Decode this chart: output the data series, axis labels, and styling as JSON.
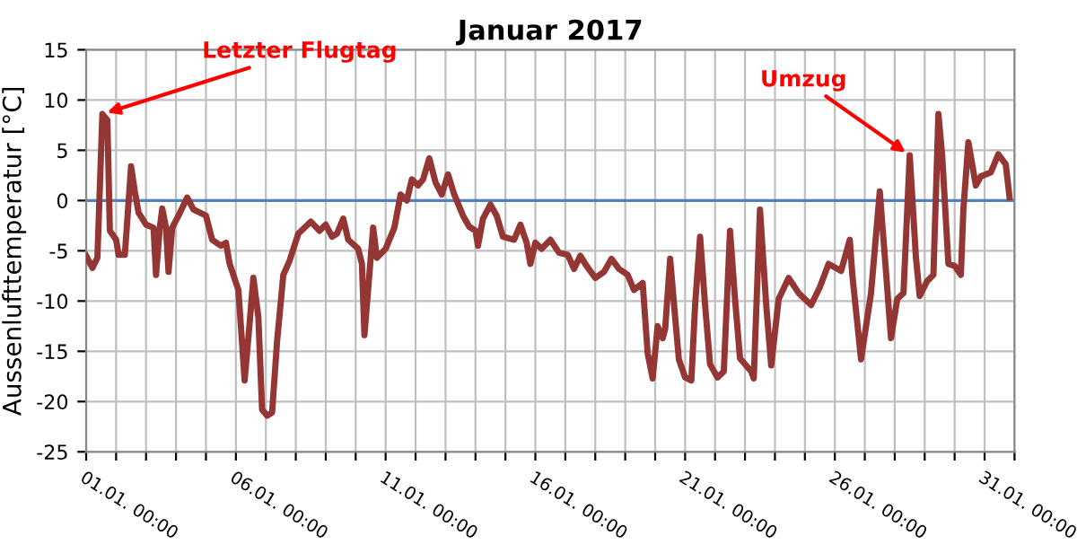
{
  "chart_data": {
    "type": "line",
    "title": "Januar 2017",
    "ylabel": "Aussenlufttemperatur [°C]",
    "x": [
      "2017-01-01T00:00",
      "2017-01-01T05:00",
      "2017-01-01T09:00",
      "2017-01-01T13:00",
      "2017-01-01T17:00",
      "2017-01-01T19:00",
      "2017-01-02T00:00",
      "2017-01-02T02:00",
      "2017-01-02T07:00",
      "2017-01-02T12:00",
      "2017-01-02T15:00",
      "2017-01-02T18:00",
      "2017-01-03T00:00",
      "2017-01-03T06:00",
      "2017-01-03T08:00",
      "2017-01-03T11:00",
      "2017-01-03T13:00",
      "2017-01-03T16:00",
      "2017-01-03T18:00",
      "2017-01-03T21:00",
      "2017-01-04T02:00",
      "2017-01-04T09:00",
      "2017-01-04T14:00",
      "2017-01-05T00:00",
      "2017-01-05T05:00",
      "2017-01-05T12:00",
      "2017-01-05T16:00",
      "2017-01-05T19:00",
      "2017-01-06T02:00",
      "2017-01-06T07:00",
      "2017-01-06T11:00",
      "2017-01-06T14:00",
      "2017-01-06T18:00",
      "2017-01-06T21:00",
      "2017-01-07T01:00",
      "2017-01-07T05:00",
      "2017-01-07T09:00",
      "2017-01-07T14:00",
      "2017-01-07T19:00",
      "2017-01-08T02:00",
      "2017-01-08T12:00",
      "2017-01-08T19:00",
      "2017-01-09T00:00",
      "2017-01-09T05:00",
      "2017-01-09T09:00",
      "2017-01-09T14:00",
      "2017-01-09T18:00",
      "2017-01-10T02:00",
      "2017-01-10T05:00",
      "2017-01-10T07:00",
      "2017-01-10T14:00",
      "2017-01-10T17:00",
      "2017-01-11T00:00",
      "2017-01-11T07:00",
      "2017-01-11T12:00",
      "2017-01-11T17:00",
      "2017-01-11T21:00",
      "2017-01-12T02:00",
      "2017-01-12T06:00",
      "2017-01-12T11:00",
      "2017-01-12T16:00",
      "2017-01-12T21:00",
      "2017-01-13T02:00",
      "2017-01-13T07:00",
      "2017-01-13T14:00",
      "2017-01-13T19:00",
      "2017-01-14T00:00",
      "2017-01-14T02:00",
      "2017-01-14T06:00",
      "2017-01-14T12:00",
      "2017-01-14T17:00",
      "2017-01-14T22:00",
      "2017-01-15T07:00",
      "2017-01-15T12:00",
      "2017-01-15T17:00",
      "2017-01-15T20:00",
      "2017-01-16T00:00",
      "2017-01-16T05:00",
      "2017-01-16T12:00",
      "2017-01-16T19:00",
      "2017-01-17T02:00",
      "2017-01-17T07:00",
      "2017-01-17T12:00",
      "2017-01-17T17:00",
      "2017-01-18T00:00",
      "2017-01-18T07:00",
      "2017-01-18T13:00",
      "2017-01-18T19:00",
      "2017-01-19T02:00",
      "2017-01-19T07:00",
      "2017-01-19T14:00",
      "2017-01-19T18:00",
      "2017-01-19T22:00",
      "2017-01-20T02:00",
      "2017-01-20T06:00",
      "2017-01-20T08:00",
      "2017-01-20T12:00",
      "2017-01-20T16:00",
      "2017-01-20T19:00",
      "2017-01-21T00:00",
      "2017-01-21T05:00",
      "2017-01-21T08:00",
      "2017-01-21T12:00",
      "2017-01-21T16:00",
      "2017-01-21T20:00",
      "2017-01-22T02:00",
      "2017-01-22T07:00",
      "2017-01-22T12:00",
      "2017-01-22T16:00",
      "2017-01-22T20:00",
      "2017-01-23T05:00",
      "2017-01-23T07:00",
      "2017-01-23T12:00",
      "2017-01-23T17:00",
      "2017-01-23T21:00",
      "2017-01-24T03:00",
      "2017-01-24T11:00",
      "2017-01-24T19:00",
      "2017-01-25T05:00",
      "2017-01-25T12:00",
      "2017-01-25T19:00",
      "2017-01-26T05:00",
      "2017-01-26T12:00",
      "2017-01-26T14:00",
      "2017-01-26T21:00",
      "2017-01-27T05:00",
      "2017-01-27T12:00",
      "2017-01-27T17:00",
      "2017-01-27T21:00",
      "2017-01-28T02:00",
      "2017-01-28T07:00",
      "2017-01-28T12:00",
      "2017-01-28T17:00",
      "2017-01-28T20:00",
      "2017-01-29T02:00",
      "2017-01-29T07:00",
      "2017-01-29T11:00",
      "2017-01-29T14:00",
      "2017-01-29T19:00",
      "2017-01-30T00:00",
      "2017-01-30T05:00",
      "2017-01-30T07:00",
      "2017-01-30T11:00",
      "2017-01-30T17:00",
      "2017-01-30T21:00",
      "2017-01-31T05:00",
      "2017-01-31T11:00",
      "2017-01-31T17:00",
      "2017-01-31T20:00"
    ],
    "series": [
      {
        "color": "#943634",
        "values": [
          -5.5,
          -6.7,
          -5.7,
          8.6,
          8.0,
          -3.0,
          -3.9,
          -5.4,
          -5.4,
          3.4,
          0.9,
          -1.2,
          -2.4,
          -2.7,
          -7.4,
          -2.7,
          -0.8,
          -2.7,
          -7.1,
          -2.7,
          -1.5,
          0.3,
          -0.9,
          -1.5,
          -3.9,
          -4.5,
          -4.2,
          -6.3,
          -8.9,
          -17.9,
          -12.2,
          -7.7,
          -11.6,
          -20.8,
          -21.4,
          -21.1,
          -14.0,
          -7.4,
          -6.0,
          -3.3,
          -2.1,
          -3.0,
          -2.4,
          -3.6,
          -3.3,
          -1.8,
          -3.9,
          -4.8,
          -6.3,
          -13.4,
          -2.7,
          -5.7,
          -4.8,
          -2.7,
          0.6,
          0.0,
          2.1,
          1.5,
          2.1,
          4.2,
          1.8,
          0.6,
          2.6,
          0.6,
          -1.5,
          -2.6,
          -3.0,
          -4.5,
          -1.8,
          -0.4,
          -1.5,
          -3.6,
          -3.9,
          -2.4,
          -4.2,
          -6.3,
          -4.2,
          -4.8,
          -3.9,
          -5.2,
          -5.4,
          -6.8,
          -5.5,
          -6.5,
          -7.7,
          -7.1,
          -5.8,
          -6.8,
          -7.4,
          -8.9,
          -8.2,
          -15.2,
          -17.7,
          -12.5,
          -13.7,
          -12.8,
          -5.8,
          -11.6,
          -15.8,
          -17.6,
          -17.9,
          -10.4,
          -3.6,
          -10.4,
          -16.3,
          -17.6,
          -17.0,
          -3.0,
          -9.8,
          -15.7,
          -17.0,
          -17.7,
          -0.9,
          -10.4,
          -16.4,
          -9.8,
          -7.7,
          -9.2,
          -10.4,
          -8.6,
          -6.3,
          -7.0,
          -3.9,
          -7.4,
          -15.8,
          -9.2,
          0.9,
          -7.1,
          -13.7,
          -9.8,
          -9.2,
          4.5,
          -5.7,
          -9.5,
          -8.0,
          -7.4,
          8.6,
          4.5,
          -6.3,
          -6.5,
          -7.4,
          -0.9,
          5.8,
          1.5,
          2.4,
          2.8,
          4.6,
          3.6,
          0.3
        ]
      }
    ],
    "xlim": [
      "2017-01-01T00:00",
      "2017-02-01T00:00"
    ],
    "xticks": [
      {
        "value": "2017-01-01T00:00",
        "label": "01.01. 00:00"
      },
      {
        "value": "2017-01-02T00:00",
        "label": null
      },
      {
        "value": "2017-01-03T00:00",
        "label": null
      },
      {
        "value": "2017-01-04T00:00",
        "label": null
      },
      {
        "value": "2017-01-05T00:00",
        "label": null
      },
      {
        "value": "2017-01-06T00:00",
        "label": "06.01. 00:00"
      },
      {
        "value": "2017-01-07T00:00",
        "label": null
      },
      {
        "value": "2017-01-08T00:00",
        "label": null
      },
      {
        "value": "2017-01-09T00:00",
        "label": null
      },
      {
        "value": "2017-01-10T00:00",
        "label": null
      },
      {
        "value": "2017-01-11T00:00",
        "label": "11.01. 00:00"
      },
      {
        "value": "2017-01-12T00:00",
        "label": null
      },
      {
        "value": "2017-01-13T00:00",
        "label": null
      },
      {
        "value": "2017-01-14T00:00",
        "label": null
      },
      {
        "value": "2017-01-15T00:00",
        "label": null
      },
      {
        "value": "2017-01-16T00:00",
        "label": "16.01. 00:00"
      },
      {
        "value": "2017-01-17T00:00",
        "label": null
      },
      {
        "value": "2017-01-18T00:00",
        "label": null
      },
      {
        "value": "2017-01-19T00:00",
        "label": null
      },
      {
        "value": "2017-01-20T00:00",
        "label": null
      },
      {
        "value": "2017-01-21T00:00",
        "label": "21.01. 00:00"
      },
      {
        "value": "2017-01-22T00:00",
        "label": null
      },
      {
        "value": "2017-01-23T00:00",
        "label": null
      },
      {
        "value": "2017-01-24T00:00",
        "label": null
      },
      {
        "value": "2017-01-25T00:00",
        "label": null
      },
      {
        "value": "2017-01-26T00:00",
        "label": "26.01. 00:00"
      },
      {
        "value": "2017-01-27T00:00",
        "label": null
      },
      {
        "value": "2017-01-28T00:00",
        "label": null
      },
      {
        "value": "2017-01-29T00:00",
        "label": null
      },
      {
        "value": "2017-01-30T00:00",
        "label": null
      },
      {
        "value": "2017-01-31T00:00",
        "label": "31.01. 00:00"
      },
      {
        "value": "2017-02-01T00:00",
        "label": null
      }
    ],
    "ylim": [
      -25,
      15
    ],
    "yticks": [
      -25,
      -20,
      -15,
      -10,
      -5,
      0,
      5,
      10,
      15
    ],
    "grid": true,
    "ref_lines": [
      {
        "axis": "y",
        "value": 0,
        "color": "#4f81bd"
      }
    ],
    "annotations": [
      {
        "text": "Letzter Flugtag",
        "x": "2017-01-01T13:00",
        "y": 8.6
      },
      {
        "text": "Umzug",
        "x": "2017-01-28T12:00",
        "y": 4.5
      }
    ]
  }
}
